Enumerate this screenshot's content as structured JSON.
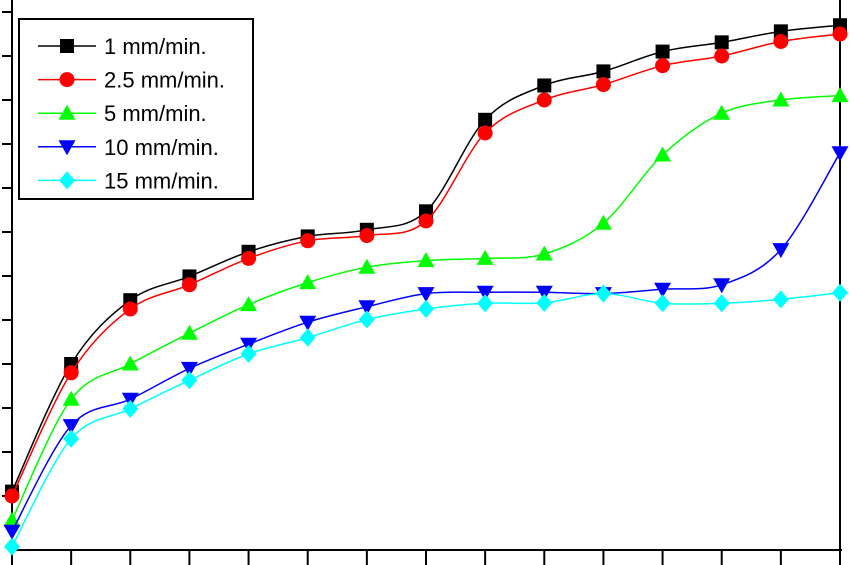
{
  "chart_data": {
    "type": "line",
    "title": "",
    "xlabel": "",
    "ylabel": "",
    "x": [
      1,
      2,
      3,
      4,
      5,
      6,
      7,
      8,
      9,
      10,
      11,
      12,
      13,
      14,
      15
    ],
    "xlim": [
      1,
      15
    ],
    "ylim": [
      0,
      12
    ],
    "grid": false,
    "legend_position": "top-left",
    "series": [
      {
        "name": "1 mm/min.",
        "color": "#000000",
        "marker": "square",
        "values": [
          1.1,
          4.0,
          5.45,
          5.99,
          6.55,
          6.9,
          7.05,
          7.47,
          9.55,
          10.33,
          10.65,
          11.1,
          11.31,
          11.56,
          11.7
        ]
      },
      {
        "name": "2.5 mm/min.",
        "color": "#ff0000",
        "marker": "circle",
        "values": [
          1.0,
          3.8,
          5.25,
          5.8,
          6.4,
          6.8,
          6.92,
          7.25,
          9.25,
          10.0,
          10.35,
          10.78,
          11.0,
          11.33,
          11.5
        ]
      },
      {
        "name": "5 mm/min.",
        "color": "#00ff00",
        "marker": "triangle-up",
        "values": [
          0.45,
          3.2,
          4.0,
          4.7,
          5.35,
          5.85,
          6.2,
          6.35,
          6.4,
          6.5,
          7.2,
          8.75,
          9.7,
          10.0,
          10.1
        ]
      },
      {
        "name": "10 mm/min.",
        "color": "#0000ff",
        "marker": "triangle-down",
        "values": [
          0.2,
          2.6,
          3.2,
          3.9,
          4.45,
          4.95,
          5.3,
          5.6,
          5.63,
          5.63,
          5.6,
          5.7,
          5.8,
          6.6,
          8.8
        ]
      },
      {
        "name": "15 mm/min.",
        "color": "#00ffff",
        "marker": "diamond",
        "values": [
          -0.15,
          2.3,
          2.98,
          3.63,
          4.23,
          4.6,
          5.01,
          5.25,
          5.38,
          5.39,
          5.6,
          5.38,
          5.38,
          5.47,
          5.62
        ]
      }
    ]
  }
}
